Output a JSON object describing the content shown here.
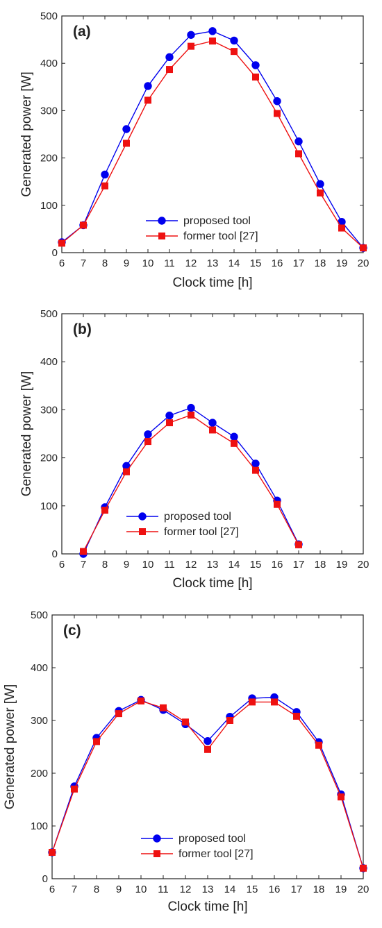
{
  "chart_data": [
    {
      "type": "line",
      "panel_label": "(a)",
      "xlabel": "Clock time [h]",
      "ylabel": "Generated power [W]",
      "xlim": [
        6,
        20
      ],
      "ylim": [
        0,
        500
      ],
      "xticks": [
        6,
        7,
        8,
        9,
        10,
        11,
        12,
        13,
        14,
        15,
        16,
        17,
        18,
        19,
        20
      ],
      "yticks": [
        0,
        100,
        200,
        300,
        400,
        500
      ],
      "grid": false,
      "legend_position": "bottom-center",
      "series": [
        {
          "name": "proposed tool",
          "color": "#0000ee",
          "marker": "circle",
          "x": [
            6,
            7,
            8,
            9,
            10,
            11,
            12,
            13,
            14,
            15,
            16,
            17,
            18,
            19,
            20
          ],
          "values": [
            22,
            58,
            165,
            261,
            352,
            413,
            460,
            468,
            448,
            396,
            320,
            235,
            145,
            65,
            10
          ]
        },
        {
          "name": "former tool [27]",
          "color": "#ee1111",
          "marker": "square",
          "x": [
            6,
            7,
            8,
            9,
            10,
            11,
            12,
            13,
            14,
            15,
            16,
            17,
            18,
            19,
            20
          ],
          "values": [
            20,
            58,
            141,
            231,
            322,
            387,
            436,
            447,
            425,
            371,
            294,
            209,
            126,
            52,
            10
          ]
        }
      ]
    },
    {
      "type": "line",
      "panel_label": "(b)",
      "xlabel": "Clock time [h]",
      "ylabel": "Generated power [W]",
      "xlim": [
        6,
        20
      ],
      "ylim": [
        0,
        500
      ],
      "xticks": [
        6,
        7,
        8,
        9,
        10,
        11,
        12,
        13,
        14,
        15,
        16,
        17,
        18,
        19,
        20
      ],
      "yticks": [
        0,
        100,
        200,
        300,
        400,
        500
      ],
      "grid": false,
      "legend_position": "bottom-center",
      "series": [
        {
          "name": "proposed tool",
          "color": "#0000ee",
          "marker": "circle",
          "x": [
            7,
            8,
            9,
            10,
            11,
            12,
            13,
            14,
            15,
            16,
            17
          ],
          "values": [
            0,
            97,
            183,
            249,
            288,
            304,
            273,
            244,
            188,
            111,
            20
          ]
        },
        {
          "name": "former tool [27]",
          "color": "#ee1111",
          "marker": "square",
          "x": [
            7,
            8,
            9,
            10,
            11,
            12,
            13,
            14,
            15,
            16,
            17
          ],
          "values": [
            5,
            91,
            171,
            234,
            273,
            289,
            258,
            230,
            174,
            103,
            19
          ]
        }
      ]
    },
    {
      "type": "line",
      "panel_label": "(c)",
      "xlabel": "Clock time [h]",
      "ylabel": "Generated power [W]",
      "xlim": [
        6,
        20
      ],
      "ylim": [
        0,
        500
      ],
      "xticks": [
        6,
        7,
        8,
        9,
        10,
        11,
        12,
        13,
        14,
        15,
        16,
        17,
        18,
        19,
        20
      ],
      "yticks": [
        0,
        100,
        200,
        300,
        400,
        500
      ],
      "grid": false,
      "legend_position": "bottom-center",
      "series": [
        {
          "name": "proposed tool",
          "color": "#0000ee",
          "marker": "circle",
          "x": [
            6,
            7,
            8,
            9,
            10,
            11,
            12,
            13,
            14,
            15,
            16,
            17,
            18,
            19,
            20
          ],
          "values": [
            50,
            175,
            267,
            318,
            339,
            320,
            293,
            261,
            307,
            342,
            344,
            316,
            259,
            160,
            20
          ]
        },
        {
          "name": "former tool [27]",
          "color": "#ee1111",
          "marker": "square",
          "x": [
            6,
            7,
            8,
            9,
            10,
            11,
            12,
            13,
            14,
            15,
            16,
            17,
            18,
            19,
            20
          ],
          "values": [
            50,
            170,
            260,
            313,
            337,
            324,
            297,
            245,
            300,
            335,
            335,
            308,
            253,
            155,
            20
          ]
        }
      ]
    }
  ]
}
